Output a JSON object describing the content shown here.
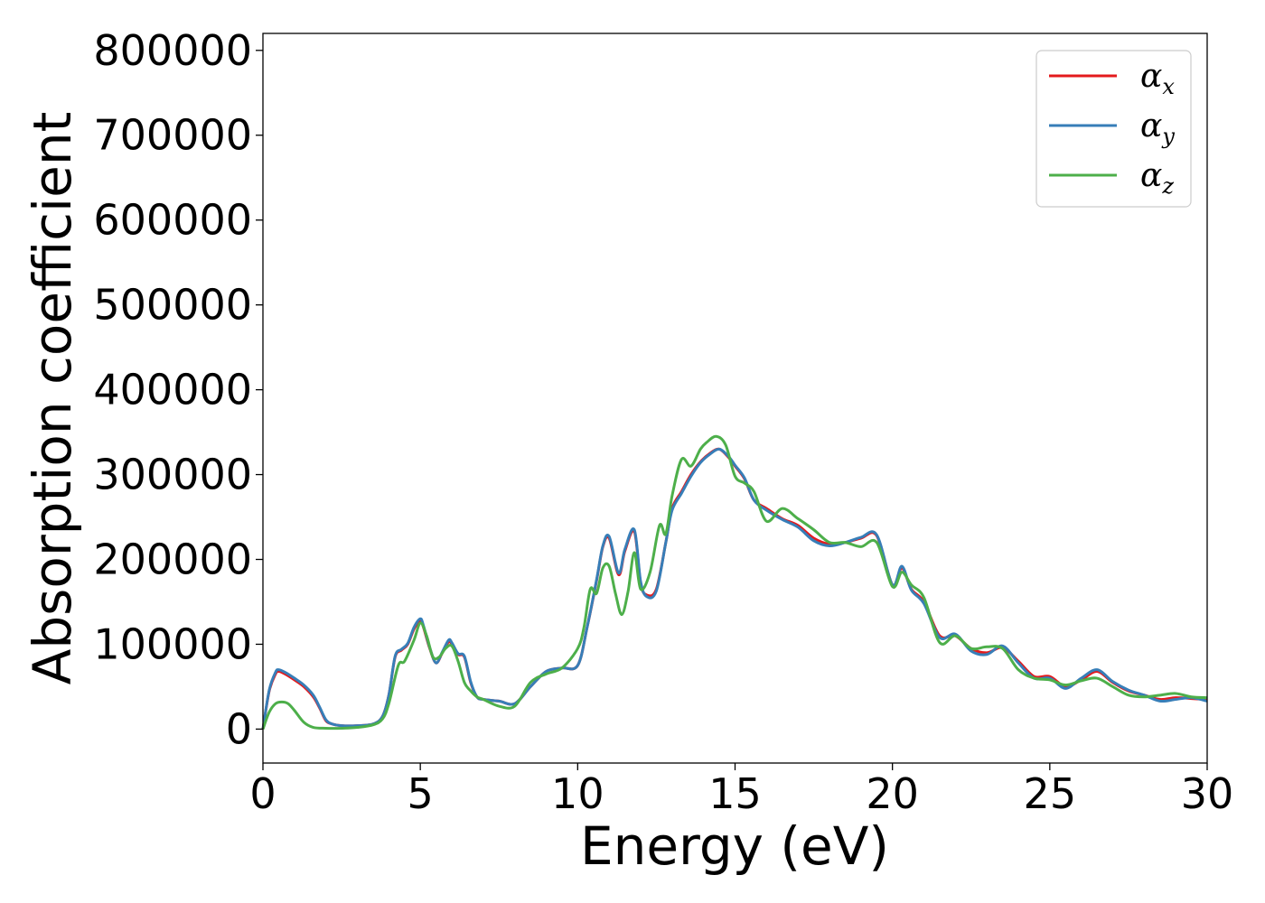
{
  "chart_data": {
    "type": "line",
    "title": "",
    "xlabel": "Energy (eV)",
    "ylabel": "Absorption coefficient",
    "xlim": [
      0,
      30
    ],
    "ylim": [
      -40000,
      820000
    ],
    "xticks": [
      0,
      5,
      10,
      15,
      20,
      25,
      30
    ],
    "yticks": [
      0,
      100000,
      200000,
      300000,
      400000,
      500000,
      600000,
      700000,
      800000
    ],
    "grid": false,
    "legend_position": "top-right",
    "series": [
      {
        "name": "α_x",
        "symbol": "α",
        "subscript": "x",
        "color": "#e41a1c",
        "x": [
          0,
          0.2,
          0.4,
          0.5,
          0.7,
          1.0,
          1.3,
          1.6,
          1.8,
          2.0,
          2.2,
          2.5,
          3.0,
          3.5,
          3.8,
          4.0,
          4.2,
          4.4,
          4.6,
          4.8,
          5.0,
          5.1,
          5.3,
          5.5,
          5.7,
          5.9,
          6.0,
          6.2,
          6.4,
          6.6,
          6.8,
          7.0,
          7.5,
          8.0,
          8.5,
          9.0,
          9.5,
          10.0,
          10.3,
          10.6,
          10.8,
          11.0,
          11.3,
          11.5,
          11.8,
          12.0,
          12.2,
          12.5,
          12.8,
          13.0,
          13.3,
          13.6,
          13.9,
          14.2,
          14.5,
          14.8,
          15.0,
          15.3,
          15.6,
          16.0,
          16.5,
          17.0,
          17.5,
          18.0,
          18.5,
          19.0,
          19.5,
          20.0,
          20.3,
          20.6,
          21.0,
          21.5,
          22.0,
          22.5,
          23.0,
          23.5,
          24.0,
          24.5,
          25.0,
          25.5,
          26.0,
          26.5,
          27.0,
          27.5,
          28.0,
          28.5,
          29.0,
          29.5,
          30.0
        ],
        "y": [
          0,
          45000,
          65000,
          68000,
          65000,
          58000,
          50000,
          38000,
          25000,
          10000,
          6000,
          4000,
          4000,
          6000,
          15000,
          40000,
          85000,
          93000,
          100000,
          118000,
          128000,
          120000,
          95000,
          78000,
          90000,
          103000,
          100000,
          88000,
          85000,
          55000,
          38000,
          35000,
          33000,
          30000,
          50000,
          68000,
          72000,
          75000,
          120000,
          175000,
          215000,
          225000,
          182000,
          210000,
          233000,
          172000,
          158000,
          165000,
          220000,
          260000,
          280000,
          300000,
          315000,
          325000,
          330000,
          320000,
          310000,
          295000,
          270000,
          260000,
          248000,
          240000,
          225000,
          218000,
          220000,
          225000,
          228000,
          170000,
          190000,
          165000,
          150000,
          110000,
          110000,
          95000,
          90000,
          96000,
          80000,
          62000,
          62000,
          50000,
          58000,
          68000,
          55000,
          45000,
          40000,
          35000,
          37000,
          36000,
          35000
        ]
      },
      {
        "name": "α_y",
        "symbol": "α",
        "subscript": "y",
        "color": "#377eb8",
        "x": [
          0,
          0.2,
          0.4,
          0.5,
          0.7,
          1.0,
          1.3,
          1.6,
          1.8,
          2.0,
          2.2,
          2.5,
          3.0,
          3.5,
          3.8,
          4.0,
          4.2,
          4.4,
          4.6,
          4.8,
          5.0,
          5.1,
          5.3,
          5.5,
          5.7,
          5.9,
          6.0,
          6.2,
          6.4,
          6.6,
          6.8,
          7.0,
          7.5,
          8.0,
          8.5,
          9.0,
          9.5,
          10.0,
          10.3,
          10.6,
          10.8,
          11.0,
          11.3,
          11.5,
          11.8,
          12.0,
          12.2,
          12.5,
          12.8,
          13.0,
          13.3,
          13.6,
          13.9,
          14.2,
          14.5,
          14.8,
          15.0,
          15.3,
          15.6,
          16.0,
          16.5,
          17.0,
          17.5,
          18.0,
          18.5,
          19.0,
          19.5,
          20.0,
          20.3,
          20.6,
          21.0,
          21.5,
          22.0,
          22.5,
          23.0,
          23.5,
          24.0,
          24.5,
          25.0,
          25.5,
          26.0,
          26.5,
          27.0,
          27.5,
          28.0,
          28.5,
          29.0,
          29.5,
          30.0
        ],
        "y": [
          0,
          46000,
          67000,
          70000,
          67000,
          60000,
          52000,
          40000,
          26000,
          11000,
          6000,
          4000,
          4000,
          6000,
          15000,
          40000,
          86000,
          94000,
          101000,
          120000,
          130000,
          122000,
          96000,
          78000,
          91000,
          105000,
          102000,
          89000,
          86000,
          56000,
          38000,
          35000,
          33000,
          30000,
          50000,
          68000,
          72000,
          75000,
          120000,
          176000,
          216000,
          227000,
          184000,
          212000,
          235000,
          174000,
          156000,
          163000,
          220000,
          258000,
          278000,
          298000,
          314000,
          324000,
          330000,
          321000,
          311000,
          296000,
          270000,
          258000,
          247000,
          238000,
          222000,
          216000,
          220000,
          226000,
          229000,
          170000,
          192000,
          164000,
          148000,
          108000,
          112000,
          92000,
          88000,
          98000,
          78000,
          60000,
          60000,
          48000,
          60000,
          70000,
          56000,
          46000,
          40000,
          33000,
          35000,
          37000,
          33000
        ]
      },
      {
        "name": "α_z",
        "symbol": "α",
        "subscript": "z",
        "color": "#4daf4a",
        "x": [
          0,
          0.2,
          0.4,
          0.6,
          0.8,
          1.0,
          1.3,
          1.6,
          2.0,
          2.5,
          3.0,
          3.5,
          3.8,
          4.0,
          4.3,
          4.5,
          4.8,
          5.0,
          5.2,
          5.4,
          5.6,
          5.8,
          6.0,
          6.2,
          6.4,
          6.6,
          6.8,
          7.0,
          7.5,
          8.0,
          8.5,
          9.0,
          9.5,
          10.0,
          10.2,
          10.4,
          10.6,
          10.8,
          11.0,
          11.2,
          11.4,
          11.6,
          11.8,
          12.0,
          12.3,
          12.6,
          12.8,
          13.0,
          13.3,
          13.6,
          13.9,
          14.1,
          14.4,
          14.7,
          15.0,
          15.3,
          15.6,
          16.0,
          16.5,
          17.0,
          17.5,
          18.0,
          18.5,
          19.0,
          19.5,
          20.0,
          20.3,
          20.6,
          21.0,
          21.5,
          22.0,
          22.5,
          23.0,
          23.5,
          24.0,
          24.5,
          25.0,
          25.5,
          26.0,
          26.5,
          27.0,
          27.5,
          28.0,
          28.5,
          29.0,
          29.5,
          30.0
        ],
        "y": [
          0,
          20000,
          30000,
          32000,
          30000,
          22000,
          8000,
          2000,
          1000,
          1000,
          2000,
          5000,
          12000,
          30000,
          75000,
          80000,
          105000,
          125000,
          110000,
          85000,
          85000,
          95000,
          98000,
          80000,
          55000,
          45000,
          38000,
          35000,
          27000,
          27000,
          55000,
          65000,
          72000,
          95000,
          120000,
          165000,
          160000,
          190000,
          192000,
          160000,
          135000,
          162000,
          208000,
          165000,
          185000,
          240000,
          230000,
          275000,
          318000,
          310000,
          330000,
          338000,
          345000,
          335000,
          298000,
          290000,
          280000,
          245000,
          260000,
          248000,
          235000,
          220000,
          220000,
          215000,
          220000,
          168000,
          185000,
          170000,
          155000,
          102000,
          110000,
          95000,
          97000,
          95000,
          70000,
          60000,
          58000,
          52000,
          57000,
          60000,
          50000,
          40000,
          38000,
          40000,
          42000,
          38000,
          37000
        ]
      }
    ]
  }
}
